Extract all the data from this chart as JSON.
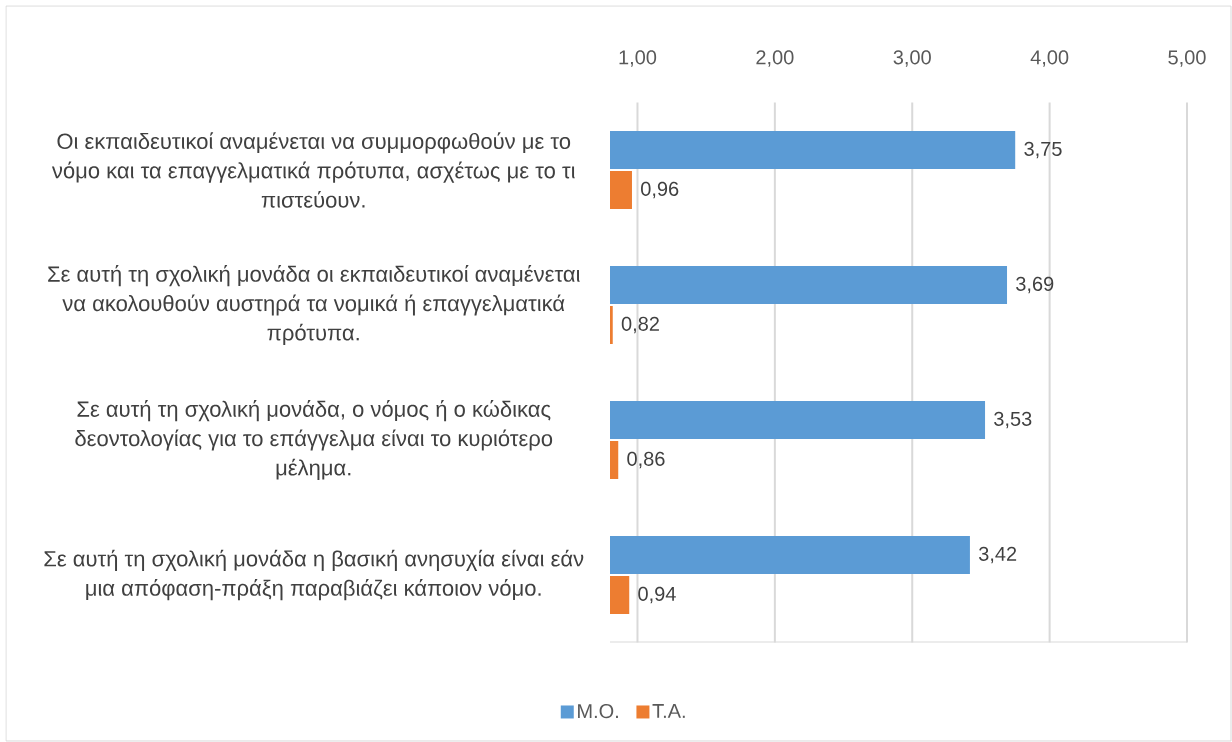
{
  "chart_data": {
    "type": "bar",
    "orientation": "horizontal",
    "categories": [
      "Οι εκπαιδευτικοί αναμένεται να συμμορφωθούν με το νόμο και τα επαγγελματικά πρότυπα, ασχέτως με το τι πιστεύουν.",
      "Σε αυτή τη σχολική μονάδα οι εκπαιδευτικοί αναμένεται να ακολουθούν αυστηρά τα νομικά ή επαγγελματικά πρότυπα.",
      "Σε αυτή τη σχολική μονάδα, ο νόμος ή ο κώδικας δεοντολογίας για το επάγγελμα είναι το κυριότερο μέλημα.",
      "Σε αυτή τη σχολική μονάδα η βασική ανησυχία είναι εάν μια απόφαση-πράξη παραβιάζει κάποιον νόμο."
    ],
    "series": [
      {
        "name": "Μ.Ο.",
        "color": "#5b9bd5",
        "values": [
          3.75,
          3.69,
          3.53,
          3.42
        ],
        "value_labels": [
          "3,75",
          "3,69",
          "3,53",
          "3,42"
        ]
      },
      {
        "name": "Τ.Α.",
        "color": "#ed7d31",
        "values": [
          0.96,
          0.82,
          0.86,
          0.94
        ],
        "value_labels": [
          "0,96",
          "0,82",
          "0,86",
          "0,94"
        ]
      }
    ],
    "xlim": [
      0.8,
      5
    ],
    "xticks": [
      {
        "value": 1,
        "label": "1,00"
      },
      {
        "value": 2,
        "label": "2,00"
      },
      {
        "value": 3,
        "label": "3,00"
      },
      {
        "value": 4,
        "label": "4,00"
      },
      {
        "value": 5,
        "label": "5,00"
      }
    ],
    "grid": "x",
    "legend": "bottom"
  }
}
